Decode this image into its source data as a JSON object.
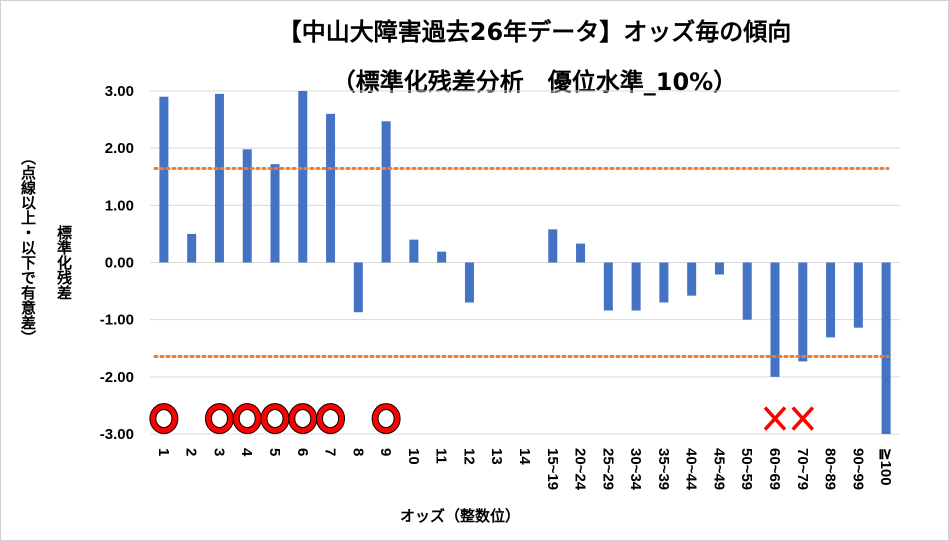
{
  "chart_data": {
    "type": "bar",
    "title": "【中山大障害過去26年データ】オッズ毎の傾向",
    "subtitle": "（標準化残差分析　優位水準_10%）",
    "xlabel": "オッズ（整数位）",
    "ylabel": "標準化残差",
    "ylabel_note": "（点線以上・以下で有意差）",
    "ylim": [
      -3,
      3
    ],
    "yticks": [
      "3.00",
      "2.00",
      "1.00",
      "0.00",
      "-1.00",
      "-2.00",
      "-3.00"
    ],
    "ytick_values": [
      3,
      2,
      1,
      0,
      -1,
      -2,
      -3
    ],
    "categories": [
      "1",
      "2",
      "3",
      "4",
      "5",
      "6",
      "7",
      "8",
      "9",
      "10",
      "11",
      "12",
      "13",
      "14",
      "15~19",
      "20~24",
      "25~29",
      "30~34",
      "35~39",
      "40~44",
      "45~49",
      "50~59",
      "60~69",
      "70~79",
      "80~89",
      "90~99",
      "≧100"
    ],
    "values": [
      2.9,
      0.5,
      2.95,
      1.98,
      1.72,
      3.0,
      2.6,
      -0.87,
      2.47,
      0.4,
      0.19,
      -0.7,
      0,
      0,
      0.58,
      0.33,
      -0.84,
      -0.84,
      -0.7,
      -0.58,
      -0.21,
      -1.0,
      -2.0,
      -1.73,
      -1.31,
      -1.14,
      -3.0
    ],
    "markers": [
      "circle",
      "",
      "circle",
      "circle",
      "circle",
      "circle",
      "circle",
      "",
      "circle",
      "",
      "",
      "",
      "",
      "",
      "",
      "",
      "",
      "",
      "",
      "",
      "",
      "",
      "cross",
      "cross",
      "",
      "",
      ""
    ],
    "thresholds": [
      1.645,
      -1.645
    ],
    "colors": {
      "bar": "#4472c4",
      "threshold": "#ed7d31",
      "circle": "#ff0000",
      "cross": "#ff0000"
    },
    "grid": true
  }
}
